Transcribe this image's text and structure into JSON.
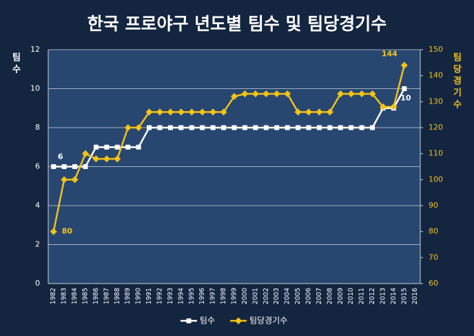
{
  "chart_data": {
    "type": "line",
    "title": "한국 프로야구 년도별 팀수 및 팀당경기수",
    "y_label": "팀수",
    "y2_label": "팀당경기수",
    "categories": [
      "1982",
      "1983",
      "1984",
      "1985",
      "1986",
      "1987",
      "1988",
      "1989",
      "1990",
      "1991",
      "1992",
      "1993",
      "1994",
      "1995",
      "1996",
      "1997",
      "1998",
      "1999",
      "2000",
      "2001",
      "2002",
      "2003",
      "2004",
      "2005",
      "2006",
      "2007",
      "2008",
      "2009",
      "2010",
      "2011",
      "2012",
      "2013",
      "2014",
      "2015",
      "2016"
    ],
    "series": [
      {
        "name": "팀수",
        "color": "#ffffff",
        "marker": "square",
        "axis": "y",
        "values": [
          6,
          6,
          6,
          6,
          7,
          7,
          7,
          7,
          7,
          8,
          8,
          8,
          8,
          8,
          8,
          8,
          8,
          8,
          8,
          8,
          8,
          8,
          8,
          8,
          8,
          8,
          8,
          8,
          8,
          8,
          8,
          9,
          9,
          10,
          null
        ],
        "value_labels": [
          "6",
          null,
          null,
          null,
          null,
          null,
          null,
          null,
          null,
          null,
          null,
          null,
          null,
          null,
          null,
          null,
          null,
          null,
          null,
          null,
          null,
          null,
          null,
          null,
          null,
          null,
          null,
          null,
          null,
          null,
          null,
          null,
          null,
          "10",
          null
        ]
      },
      {
        "name": "팀당경기수",
        "color": "#f2c21b",
        "marker": "diamond",
        "axis": "y2",
        "values": [
          80,
          100,
          100,
          110,
          108,
          108,
          108,
          120,
          120,
          126,
          126,
          126,
          126,
          126,
          126,
          126,
          126,
          132,
          133,
          133,
          133,
          133,
          133,
          126,
          126,
          126,
          126,
          133,
          133,
          133,
          133,
          128,
          128,
          144,
          null
        ],
        "value_labels": [
          "80",
          null,
          null,
          null,
          null,
          null,
          null,
          null,
          null,
          null,
          null,
          null,
          null,
          null,
          null,
          null,
          null,
          null,
          null,
          null,
          null,
          null,
          null,
          null,
          null,
          null,
          null,
          null,
          null,
          null,
          null,
          null,
          null,
          "144",
          null
        ]
      }
    ],
    "ylim": [
      0,
      12
    ],
    "yticks": [
      0,
      2,
      4,
      6,
      8,
      10,
      12
    ],
    "y2lim": [
      60,
      150
    ],
    "y2ticks": [
      60,
      70,
      80,
      90,
      100,
      110,
      120,
      130,
      140,
      150
    ],
    "grid": true,
    "legend": "bottom"
  }
}
